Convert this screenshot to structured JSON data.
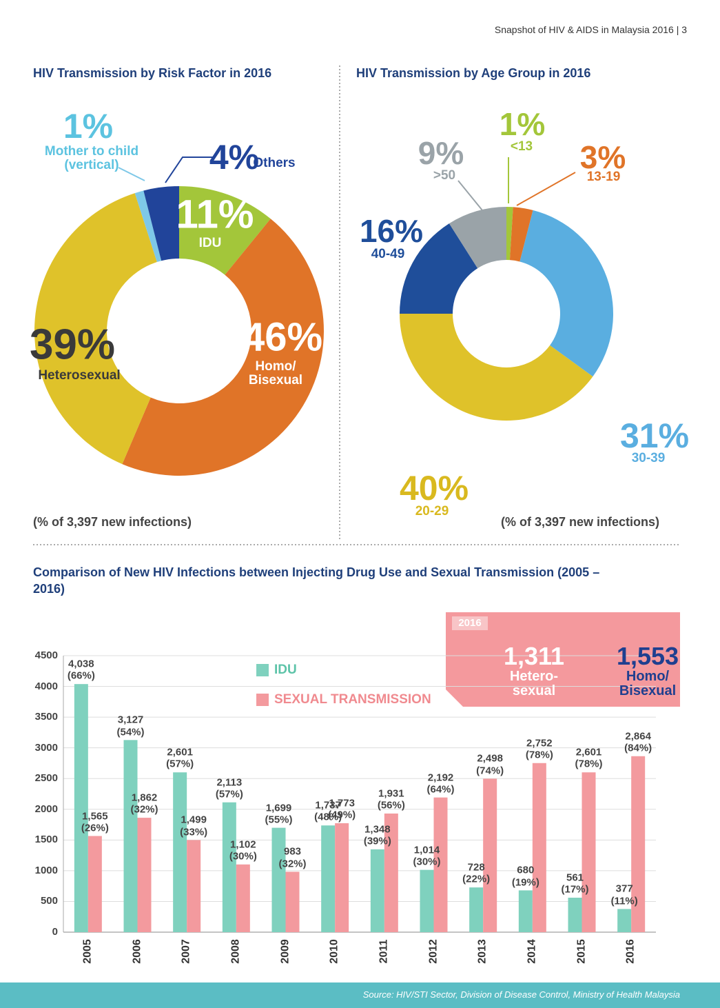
{
  "header": "Snapshot of HIV & AIDS in Malaysia 2016 | 3",
  "source": "Source: HIV/STI Sector, Division of Disease Control, Ministry of Health Malaysia",
  "chart_data": [
    {
      "type": "donut",
      "title": "HIV Transmission by Risk Factor in 2016",
      "note": "(% of 3,397 new infections)",
      "categories": [
        "IDU",
        "Homo/\nBisexual",
        "Heterosexual",
        "Mother to child\n(vertical)",
        "Others"
      ],
      "values": [
        11,
        46,
        39,
        1,
        4
      ],
      "value_labels": [
        "11%",
        "46%",
        "39%",
        "1%",
        "4%"
      ],
      "colors": [
        "#a3c63a",
        "#e07428",
        "#dfc22a",
        "#7ec8e8",
        "#21449a"
      ]
    },
    {
      "type": "donut",
      "title": "HIV Transmission by Age Group in 2016",
      "note": "(% of 3,397 new infections)",
      "categories": [
        "<13",
        "13-19",
        "30-39",
        "20-29",
        "40-49",
        ">50"
      ],
      "values": [
        1,
        3,
        31,
        40,
        16,
        9
      ],
      "value_labels": [
        "1%",
        "3%",
        "31%",
        "40%",
        "16%",
        "9%"
      ],
      "colors": [
        "#a3c63a",
        "#e07428",
        "#5aaee0",
        "#dfc22a",
        "#1f4e9a",
        "#9aa3a8"
      ]
    },
    {
      "type": "bar",
      "title": "Comparison of New HIV Infections between Injecting Drug Use and Sexual Transmission (2005 – 2016)",
      "categories": [
        "2005",
        "2006",
        "2007",
        "2008",
        "2009",
        "2010",
        "2011",
        "2012",
        "2013",
        "2014",
        "2015",
        "2016"
      ],
      "series": [
        {
          "name": "IDU",
          "color": "#7fd1be",
          "values": [
            4038,
            3127,
            2601,
            2113,
            1699,
            1737,
            1348,
            1014,
            728,
            680,
            561,
            377
          ],
          "value_labels": [
            "4,038\n(66%)",
            "3,127\n(54%)",
            "2,601\n(57%)",
            "2,113\n(57%)",
            "1,699\n(55%)",
            "1,737\n(48%)",
            "1,348\n(39%)",
            "1,014\n(30%)",
            "728\n(22%)",
            "680\n(19%)",
            "561\n(17%)",
            "377\n(11%)"
          ]
        },
        {
          "name": "SEXUAL TRANSMISSION",
          "color": "#f39a9e",
          "values": [
            1565,
            1862,
            1499,
            1102,
            983,
            1773,
            1931,
            2192,
            2498,
            2752,
            2601,
            2864
          ],
          "value_labels": [
            "1,565\n(26%)",
            "1,862\n(32%)",
            "1,499\n(33%)",
            "1,102\n(30%)",
            "983\n(32%)",
            "1,773\n(49%)",
            "1,931\n(56%)",
            "2,192\n(64%)",
            "2,498\n(74%)",
            "2,752\n(78%)",
            "2,601\n(78%)",
            "2,864\n(84%)"
          ]
        }
      ],
      "ylim": [
        0,
        4500
      ],
      "yticks": [
        0,
        500,
        1000,
        1500,
        2000,
        2500,
        3000,
        3500,
        4000,
        4500
      ],
      "grid": true,
      "callout": {
        "title": "2016",
        "items": [
          {
            "value": "1,311",
            "label": "Hetero-\nsexual"
          },
          {
            "value": "1,553",
            "label": "Homo/\nBisexual"
          }
        ]
      }
    }
  ]
}
